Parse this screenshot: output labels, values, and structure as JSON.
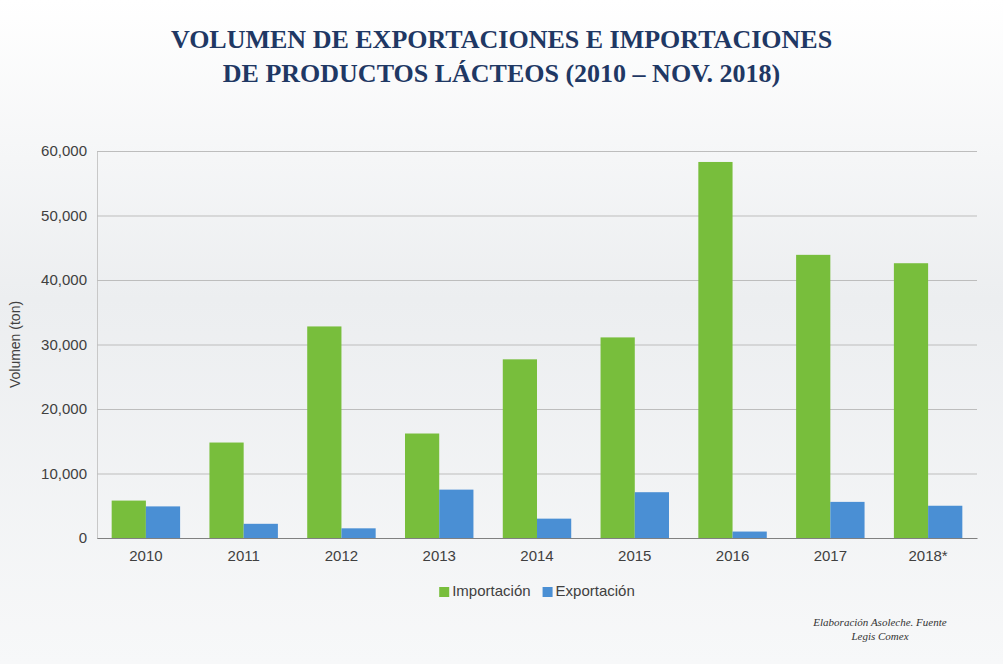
{
  "chart_data": {
    "type": "bar",
    "title": "VOLUMEN DE EXPORTACIONES E IMPORTACIONES DE PRODUCTOS LÁCTEOS (2010 – NOV. 2018)",
    "y_label": "Volumen (ton)",
    "note": "Elaboración Asoleche. Fuente Legis Comex",
    "categories": [
      "2010",
      "2011",
      "2012",
      "2013",
      "2014",
      "2015",
      "2016",
      "2017",
      "2018*"
    ],
    "series": [
      {
        "name": "Importación",
        "color": "#78be3c",
        "values": [
          5800,
          14800,
          32800,
          16200,
          27700,
          31100,
          58300,
          43900,
          42600
        ]
      },
      {
        "name": "Exportación",
        "color": "#4a8fd4",
        "values": [
          4900,
          2200,
          1500,
          7500,
          3000,
          7100,
          1000,
          5600,
          5000
        ]
      }
    ],
    "ylim": [
      0,
      60000
    ],
    "yticks": [
      0,
      {
        "value": 10000,
        "label": "10,000"
      },
      {
        "value": 20000,
        "label": "20,000"
      },
      {
        "value": 30000,
        "label": "30,000"
      },
      {
        "value": 40000,
        "label": "40,000"
      },
      {
        "value": 50000,
        "label": "50,000"
      },
      {
        "value": 60000,
        "label": "60,000"
      }
    ],
    "grid": true,
    "legend": "bottom"
  }
}
